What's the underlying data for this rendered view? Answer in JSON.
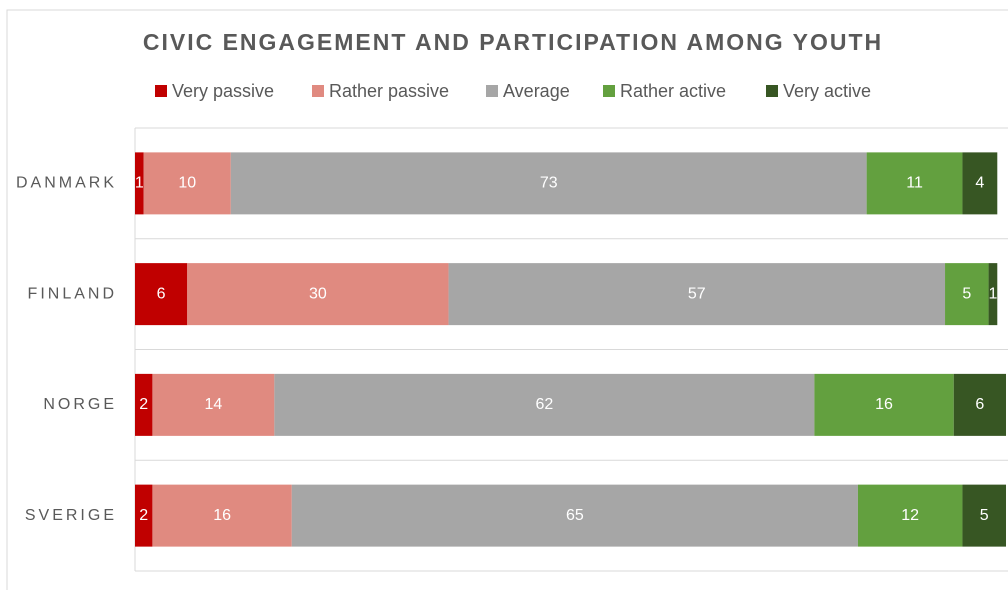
{
  "chart_data": {
    "type": "stacked-barh",
    "title": "CIVIC ENGAGEMENT AND PARTICIPATION AMONG YOUTH",
    "categories": [
      "DANMARK",
      "FINLAND",
      "NORGE",
      "SVERIGE"
    ],
    "series": [
      {
        "name": "Very passive",
        "color": "#c00000",
        "values": [
          1,
          6,
          2,
          2
        ]
      },
      {
        "name": "Rather passive",
        "color": "#e08a80",
        "values": [
          10,
          30,
          14,
          16
        ]
      },
      {
        "name": "Average",
        "color": "#a6a6a6",
        "values": [
          73,
          57,
          62,
          65
        ]
      },
      {
        "name": "Rather active",
        "color": "#63a03f",
        "values": [
          11,
          5,
          16,
          12
        ]
      },
      {
        "name": "Very active",
        "color": "#375623",
        "values": [
          4,
          1,
          6,
          5
        ]
      }
    ],
    "xlim": [
      0,
      100
    ],
    "legend": "top"
  }
}
